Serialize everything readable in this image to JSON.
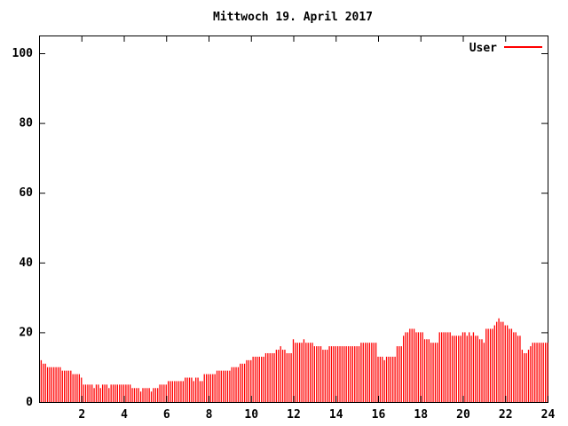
{
  "title": "Mittwoch 19. April 2017",
  "legend": {
    "label": "User",
    "color": "#ff0000"
  },
  "colors": {
    "series": "#ff0000",
    "axis": "#000000",
    "text": "#000000",
    "background": "#ffffff"
  },
  "chart_data": {
    "type": "bar",
    "style": "impulses",
    "title": "Mittwoch 19. April 2017",
    "xlabel": "",
    "ylabel": "",
    "xlim": [
      0,
      24
    ],
    "ylim": [
      0,
      105
    ],
    "x_ticks": [
      2,
      4,
      6,
      8,
      10,
      12,
      14,
      16,
      18,
      20,
      22,
      24
    ],
    "y_ticks": [
      0,
      20,
      40,
      60,
      80,
      100
    ],
    "grid": false,
    "legend_position": "top-right",
    "x_step_hours": 0.1,
    "series": [
      {
        "name": "User",
        "color": "#ff0000",
        "values": [
          12,
          11,
          11,
          10,
          10,
          10,
          10,
          10,
          10,
          10,
          9,
          9,
          9,
          9,
          9,
          8,
          8,
          8,
          8,
          7,
          5,
          5,
          5,
          5,
          5,
          4,
          5,
          5,
          4,
          5,
          5,
          5,
          4,
          5,
          5,
          5,
          5,
          5,
          5,
          5,
          5,
          5,
          5,
          4,
          4,
          4,
          4,
          3,
          4,
          4,
          4,
          4,
          3,
          4,
          4,
          4,
          5,
          5,
          5,
          5,
          6,
          6,
          6,
          6,
          6,
          6,
          6,
          6,
          7,
          7,
          7,
          7,
          6,
          7,
          7,
          6,
          6,
          8,
          8,
          8,
          8,
          8,
          8,
          9,
          9,
          9,
          9,
          9,
          9,
          9,
          10,
          10,
          10,
          10,
          11,
          11,
          11,
          12,
          12,
          12,
          13,
          13,
          13,
          13,
          13,
          13,
          14,
          14,
          14,
          14,
          14,
          15,
          15,
          16,
          15,
          15,
          14,
          14,
          14,
          18,
          17,
          17,
          17,
          17,
          18,
          17,
          17,
          17,
          17,
          16,
          16,
          16,
          16,
          15,
          15,
          15,
          16,
          16,
          16,
          16,
          16,
          16,
          16,
          16,
          16,
          16,
          16,
          16,
          16,
          16,
          16,
          17,
          17,
          17,
          17,
          17,
          17,
          17,
          17,
          13,
          13,
          13,
          12,
          13,
          13,
          13,
          13,
          13,
          16,
          16,
          16,
          19,
          20,
          20,
          21,
          21,
          21,
          20,
          20,
          20,
          20,
          18,
          18,
          18,
          17,
          17,
          17,
          17,
          20,
          20,
          20,
          20,
          20,
          20,
          19,
          19,
          19,
          19,
          19,
          20,
          20,
          19,
          20,
          19,
          20,
          19,
          19,
          18,
          18,
          17,
          21,
          21,
          21,
          21,
          22,
          23,
          24,
          23,
          23,
          22,
          22,
          21,
          21,
          20,
          20,
          19,
          19,
          15,
          14,
          14,
          15,
          16,
          17,
          17,
          17,
          17,
          17,
          17,
          17,
          17
        ]
      }
    ]
  }
}
